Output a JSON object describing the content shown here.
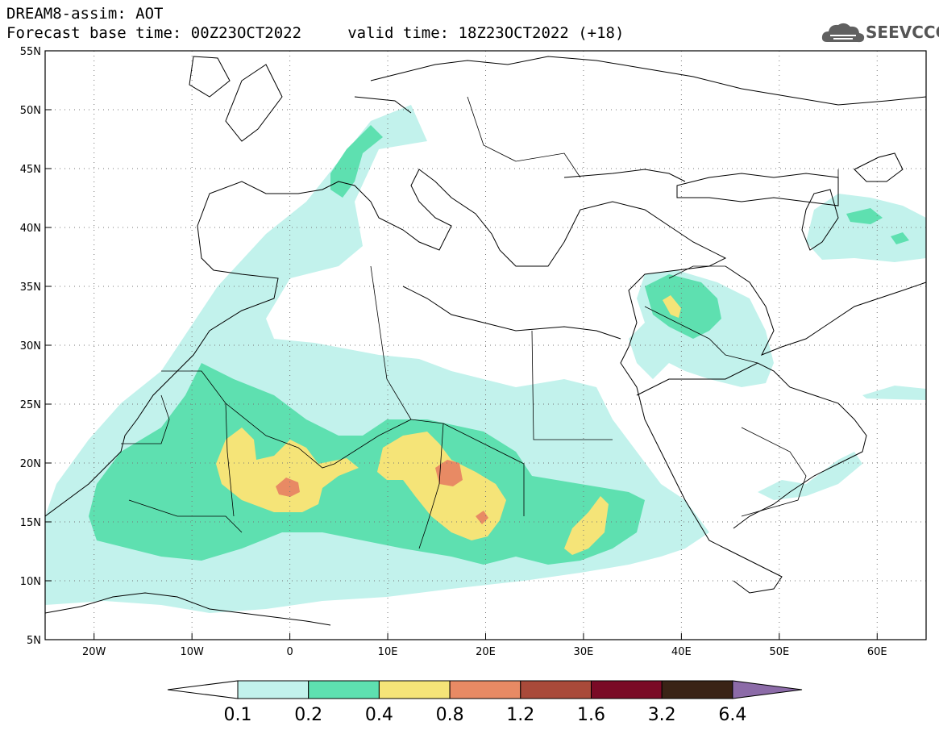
{
  "header": {
    "line1": "DREAM8-assim: AOT",
    "line2": "Forecast base time: 00Z23OCT2022     valid time: 18Z23OCT2022 (+18)"
  },
  "logo": {
    "text": "SEEVCCC",
    "icon": "cloud-logo-icon"
  },
  "map": {
    "lon_range": [
      -25,
      65
    ],
    "lat_range": [
      5,
      55
    ],
    "lon_ticks": [
      {
        "value": -20,
        "label": "20W"
      },
      {
        "value": -10,
        "label": "10W"
      },
      {
        "value": 0,
        "label": "0"
      },
      {
        "value": 10,
        "label": "10E"
      },
      {
        "value": 20,
        "label": "20E"
      },
      {
        "value": 30,
        "label": "30E"
      },
      {
        "value": 40,
        "label": "40E"
      },
      {
        "value": 50,
        "label": "50E"
      },
      {
        "value": 60,
        "label": "60E"
      }
    ],
    "lat_ticks": [
      {
        "value": 5,
        "label": "5N"
      },
      {
        "value": 10,
        "label": "10N"
      },
      {
        "value": 15,
        "label": "15N"
      },
      {
        "value": 20,
        "label": "20N"
      },
      {
        "value": 25,
        "label": "25N"
      },
      {
        "value": 30,
        "label": "30N"
      },
      {
        "value": 35,
        "label": "35N"
      },
      {
        "value": 40,
        "label": "40N"
      },
      {
        "value": 45,
        "label": "45N"
      },
      {
        "value": 50,
        "label": "50N"
      },
      {
        "value": 55,
        "label": "55N"
      }
    ],
    "grid": "dotted"
  },
  "colorbar": {
    "labels": [
      "0.1",
      "0.2",
      "0.4",
      "0.8",
      "1.2",
      "1.6",
      "3.2",
      "6.4"
    ],
    "colors": [
      "#c2f2ec",
      "#5ee0b0",
      "#f5e478",
      "#e88a64",
      "#a94a3a",
      "#7a0a26",
      "#3a2316",
      "#8c6ba8"
    ]
  }
}
